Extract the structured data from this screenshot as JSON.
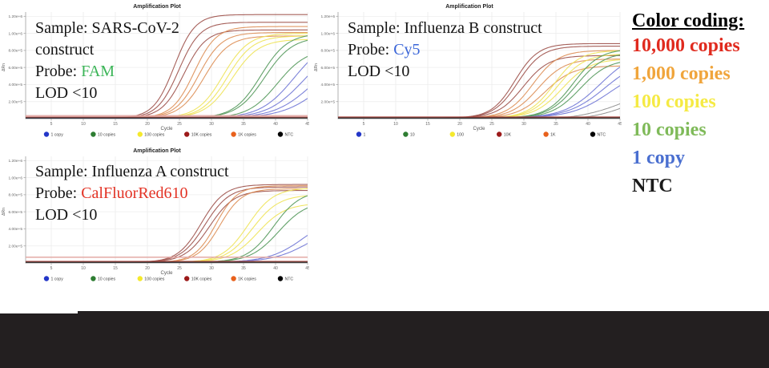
{
  "page": {
    "background": "#ffffff",
    "footer_color": "#231F20"
  },
  "color_coding": {
    "title": "Color coding:",
    "items": [
      {
        "label": "10,000 copies",
        "color": "#E02A1E"
      },
      {
        "label": "1,000 copies",
        "color": "#F0A53C"
      },
      {
        "label": "100 copies",
        "color": "#F5EA44"
      },
      {
        "label": "10 copies",
        "color": "#7FBA59"
      },
      {
        "label": "1 copy",
        "color": "#4A6FD0"
      },
      {
        "label": "NTC",
        "color": "#1A1A1A"
      }
    ]
  },
  "chart_data": [
    {
      "type": "line",
      "title": "Amplification Plot",
      "xlabel": "Cycle",
      "ylabel": "ΔRn",
      "xlim": [
        1,
        45
      ],
      "x_ticks": [
        5,
        10,
        15,
        20,
        25,
        30,
        35,
        40,
        45
      ],
      "ylim": [
        0,
        1250000
      ],
      "y_ticks": [
        {
          "value": 200000,
          "label": "2.00e+5"
        },
        {
          "value": 400000,
          "label": "4.00e+5"
        },
        {
          "value": 600000,
          "label": "6.00e+5"
        },
        {
          "value": 800000,
          "label": "8.00e+5"
        },
        {
          "value": 1000000,
          "label": "1.00e+6"
        },
        {
          "value": 1200000,
          "label": "1.20e+6"
        }
      ],
      "grid": true,
      "legend_position": "bottom",
      "legend": [
        {
          "label": "1 copy",
          "color": "#2437C8"
        },
        {
          "label": "10 copies",
          "color": "#2E7D32"
        },
        {
          "label": "100 copies",
          "color": "#F5E92C"
        },
        {
          "label": "10K copies",
          "color": "#9C1A1A"
        },
        {
          "label": "1K copies",
          "color": "#E8611C"
        },
        {
          "label": "NTC",
          "color": "#000000"
        }
      ],
      "overlay_lines": [
        [
          {
            "text": "Sample: SARS-CoV-2"
          }
        ],
        [
          {
            "text": "construct"
          }
        ],
        [
          {
            "text": "Probe: "
          },
          {
            "text": "FAM",
            "color": "#3CB558"
          }
        ],
        [
          {
            "text": "LOD <10"
          }
        ]
      ],
      "series": [
        {
          "name": "10K copies",
          "color": "#9E524C",
          "curves": [
            {
              "type": "sigmoid",
              "ct": 24.2,
              "plateau": 1220000,
              "k": 0.62
            },
            {
              "type": "sigmoid",
              "ct": 24.9,
              "plateau": 1130000,
              "k": 0.6
            },
            {
              "type": "sigmoid",
              "ct": 25.7,
              "plateau": 1040000,
              "k": 0.58
            }
          ]
        },
        {
          "name": "1K copies",
          "color": "#DD8F57",
          "curves": [
            {
              "type": "sigmoid",
              "ct": 27.3,
              "plateau": 1080000,
              "k": 0.58
            },
            {
              "type": "sigmoid",
              "ct": 28.0,
              "plateau": 1010000,
              "k": 0.55
            },
            {
              "type": "sigmoid",
              "ct": 28.9,
              "plateau": 970000,
              "k": 0.52
            }
          ]
        },
        {
          "name": "100 copies",
          "color": "#EFE45A",
          "curves": [
            {
              "type": "sigmoid",
              "ct": 31.8,
              "plateau": 1000000,
              "k": 0.5
            },
            {
              "type": "sigmoid",
              "ct": 32.5,
              "plateau": 970000,
              "k": 0.5
            },
            {
              "type": "sigmoid",
              "ct": 33.2,
              "plateau": 930000,
              "k": 0.48
            }
          ]
        },
        {
          "name": "10 copies",
          "color": "#569A5D",
          "curves": [
            {
              "type": "sigmoid",
              "ct": 37.7,
              "plateau": 1000000,
              "k": 0.48
            },
            {
              "type": "sigmoid",
              "ct": 38.3,
              "plateau": 960000,
              "k": 0.46
            },
            {
              "type": "sigmoid",
              "ct": 40.3,
              "plateau": 820000,
              "k": 0.44
            }
          ]
        },
        {
          "name": "1 copy",
          "color": "#7177D6",
          "curves": [
            {
              "type": "sigmoid",
              "ct": 42.9,
              "plateau": 950000,
              "k": 0.38
            },
            {
              "type": "sigmoid",
              "ct": 44.3,
              "plateau": 880000,
              "k": 0.36
            },
            {
              "type": "sigmoid",
              "ct": 45.8,
              "plateau": 800000,
              "k": 0.34
            },
            {
              "type": "sigmoid",
              "ct": 47.5,
              "plateau": 750000,
              "k": 0.32
            }
          ]
        },
        {
          "name": "baseline-pink",
          "color": "#E3A9A5",
          "width": 2.6,
          "curves": [
            {
              "type": "flat",
              "level": 30000
            }
          ]
        },
        {
          "name": "baseline-red",
          "color": "#B04C45",
          "width": 1.4,
          "curves": [
            {
              "type": "flat",
              "level": 15000
            }
          ]
        },
        {
          "name": "NTC",
          "color": "#1C1C1C",
          "width": 1.2,
          "curves": [
            {
              "type": "flat",
              "level": 8000
            }
          ]
        }
      ]
    },
    {
      "type": "line",
      "title": "Amplification Plot",
      "xlabel": "Cycle",
      "ylabel": "ΔRn",
      "xlim": [
        1,
        45
      ],
      "x_ticks": [
        5,
        10,
        15,
        20,
        25,
        30,
        35,
        40,
        45
      ],
      "ylim": [
        0,
        1250000
      ],
      "y_ticks": [
        {
          "value": 200000,
          "label": "2.00e+5"
        },
        {
          "value": 400000,
          "label": "4.00e+5"
        },
        {
          "value": 600000,
          "label": "6.00e+5"
        },
        {
          "value": 800000,
          "label": "8.00e+5"
        },
        {
          "value": 1000000,
          "label": "1.00e+6"
        },
        {
          "value": 1200000,
          "label": "1.20e+6"
        }
      ],
      "grid": true,
      "legend_position": "bottom",
      "legend": [
        {
          "label": "1",
          "color": "#2437C8"
        },
        {
          "label": "10",
          "color": "#2E7D32"
        },
        {
          "label": "100",
          "color": "#F5E92C"
        },
        {
          "label": "10K",
          "color": "#9C1A1A"
        },
        {
          "label": "1K",
          "color": "#E8611C"
        },
        {
          "label": "NTC",
          "color": "#000000"
        }
      ],
      "overlay_lines": [
        [
          {
            "text": "Sample: Influenza B construct"
          }
        ],
        [
          {
            "text": "Probe: "
          },
          {
            "text": "Cy5",
            "color": "#3A65D8"
          }
        ],
        [
          {
            "text": "LOD <10"
          }
        ]
      ],
      "series": [
        {
          "name": "10K",
          "color": "#9E524C",
          "curves": [
            {
              "type": "sigmoid",
              "ct": 28.6,
              "plateau": 880000,
              "k": 0.55
            },
            {
              "type": "sigmoid",
              "ct": 29.1,
              "plateau": 850000,
              "k": 0.53
            },
            {
              "type": "sigmoid",
              "ct": 29.9,
              "plateau": 740000,
              "k": 0.5
            }
          ]
        },
        {
          "name": "1K",
          "color": "#DD8F57",
          "curves": [
            {
              "type": "sigmoid",
              "ct": 31.4,
              "plateau": 800000,
              "k": 0.5
            },
            {
              "type": "sigmoid",
              "ct": 32.2,
              "plateau": 700000,
              "k": 0.48
            },
            {
              "type": "sigmoid",
              "ct": 33.3,
              "plateau": 620000,
              "k": 0.46
            }
          ]
        },
        {
          "name": "100",
          "color": "#EFE45A",
          "curves": [
            {
              "type": "sigmoid",
              "ct": 34.7,
              "plateau": 800000,
              "k": 0.5
            },
            {
              "type": "sigmoid",
              "ct": 35.3,
              "plateau": 760000,
              "k": 0.48
            },
            {
              "type": "sigmoid",
              "ct": 36.0,
              "plateau": 700000,
              "k": 0.46
            }
          ]
        },
        {
          "name": "10",
          "color": "#569A5D",
          "curves": [
            {
              "type": "sigmoid",
              "ct": 37.7,
              "plateau": 820000,
              "k": 0.48
            },
            {
              "type": "sigmoid",
              "ct": 38.2,
              "plateau": 780000,
              "k": 0.46
            },
            {
              "type": "sigmoid",
              "ct": 38.8,
              "plateau": 700000,
              "k": 0.45
            }
          ]
        },
        {
          "name": "1",
          "color": "#7177D6",
          "curves": [
            {
              "type": "sigmoid",
              "ct": 41.9,
              "plateau": 800000,
              "k": 0.36
            },
            {
              "type": "sigmoid",
              "ct": 42.7,
              "plateau": 720000,
              "k": 0.34
            },
            {
              "type": "sigmoid",
              "ct": 43.5,
              "plateau": 620000,
              "k": 0.33
            }
          ]
        },
        {
          "name": "drift",
          "color": "#8C8C8C",
          "width": 1.0,
          "curves": [
            {
              "type": "drift",
              "start": 34,
              "end": 175000
            },
            {
              "type": "drift",
              "start": 37,
              "end": 120000
            }
          ]
        },
        {
          "name": "baseline-red",
          "color": "#B04C45",
          "width": 2.2,
          "curves": [
            {
              "type": "flat",
              "level": 16000
            }
          ]
        },
        {
          "name": "NTC",
          "color": "#1C1C1C",
          "width": 1.2,
          "curves": [
            {
              "type": "flat",
              "level": 8000
            }
          ]
        }
      ]
    },
    {
      "type": "line",
      "title": "Amplification Plot",
      "xlabel": "Cycle",
      "ylabel": "ΔRn",
      "xlim": [
        1,
        45
      ],
      "x_ticks": [
        5,
        10,
        15,
        20,
        25,
        30,
        35,
        40,
        45
      ],
      "ylim": [
        0,
        1250000
      ],
      "y_ticks": [
        {
          "value": 200000,
          "label": "2.00e+5"
        },
        {
          "value": 400000,
          "label": "4.00e+5"
        },
        {
          "value": 600000,
          "label": "6.00e+5"
        },
        {
          "value": 800000,
          "label": "8.00e+5"
        },
        {
          "value": 1000000,
          "label": "1.00e+6"
        },
        {
          "value": 1200000,
          "label": "1.20e+6"
        }
      ],
      "grid": true,
      "legend_position": "bottom",
      "legend": [
        {
          "label": "1 copy",
          "color": "#2437C8"
        },
        {
          "label": "10 copies",
          "color": "#2E7D32"
        },
        {
          "label": "100 copies",
          "color": "#F5E92C"
        },
        {
          "label": "10K copies",
          "color": "#9C1A1A"
        },
        {
          "label": "1K copies",
          "color": "#E8611C"
        },
        {
          "label": "NTC",
          "color": "#000000"
        }
      ],
      "overlay_lines": [
        [
          {
            "text": "Sample: Influenza A construct"
          }
        ],
        [
          {
            "text": "Probe: "
          },
          {
            "text": "CalFluorRed610",
            "color": "#E33224"
          }
        ],
        [
          {
            "text": "LOD <10"
          }
        ]
      ],
      "series": [
        {
          "name": "10K copies",
          "color": "#9E524C",
          "curves": [
            {
              "type": "sigmoid",
              "ct": 28.4,
              "plateau": 920000,
              "k": 0.55
            },
            {
              "type": "sigmoid",
              "ct": 29.0,
              "plateau": 890000,
              "k": 0.53
            },
            {
              "type": "sigmoid",
              "ct": 29.7,
              "plateau": 850000,
              "k": 0.52
            }
          ]
        },
        {
          "name": "1K copies",
          "color": "#DD8F57",
          "curves": [
            {
              "type": "sigmoid",
              "ct": 30.7,
              "plateau": 905000,
              "k": 0.6
            },
            {
              "type": "sigmoid",
              "ct": 31.3,
              "plateau": 870000,
              "k": 0.58
            }
          ]
        },
        {
          "name": "100 copies",
          "color": "#EFE45A",
          "curves": [
            {
              "type": "sigmoid",
              "ct": 35.7,
              "plateau": 880000,
              "k": 0.5
            },
            {
              "type": "sigmoid",
              "ct": 36.4,
              "plateau": 800000,
              "k": 0.48
            },
            {
              "type": "sigmoid",
              "ct": 37.2,
              "plateau": 700000,
              "k": 0.46
            }
          ]
        },
        {
          "name": "10 copies",
          "color": "#569A5D",
          "curves": [
            {
              "type": "sigmoid",
              "ct": 39.7,
              "plateau": 850000,
              "k": 0.48
            },
            {
              "type": "sigmoid",
              "ct": 40.5,
              "plateau": 730000,
              "k": 0.45
            }
          ]
        },
        {
          "name": "1 copy",
          "color": "#7177D6",
          "curves": [
            {
              "type": "sigmoid",
              "ct": 44.6,
              "plateau": 600000,
              "k": 0.36
            },
            {
              "type": "sigmoid",
              "ct": 45.6,
              "plateau": 500000,
              "k": 0.34
            }
          ]
        },
        {
          "name": "baseline-pink",
          "color": "#E3A9A5",
          "width": 1.6,
          "curves": [
            {
              "type": "flat",
              "level": 68000
            }
          ]
        },
        {
          "name": "baseline-red",
          "color": "#B04C45",
          "width": 2.0,
          "curves": [
            {
              "type": "flat",
              "level": 15000
            }
          ]
        },
        {
          "name": "NTC",
          "color": "#1C1C1C",
          "width": 1.2,
          "curves": [
            {
              "type": "flat",
              "level": 8000
            }
          ]
        }
      ]
    }
  ]
}
